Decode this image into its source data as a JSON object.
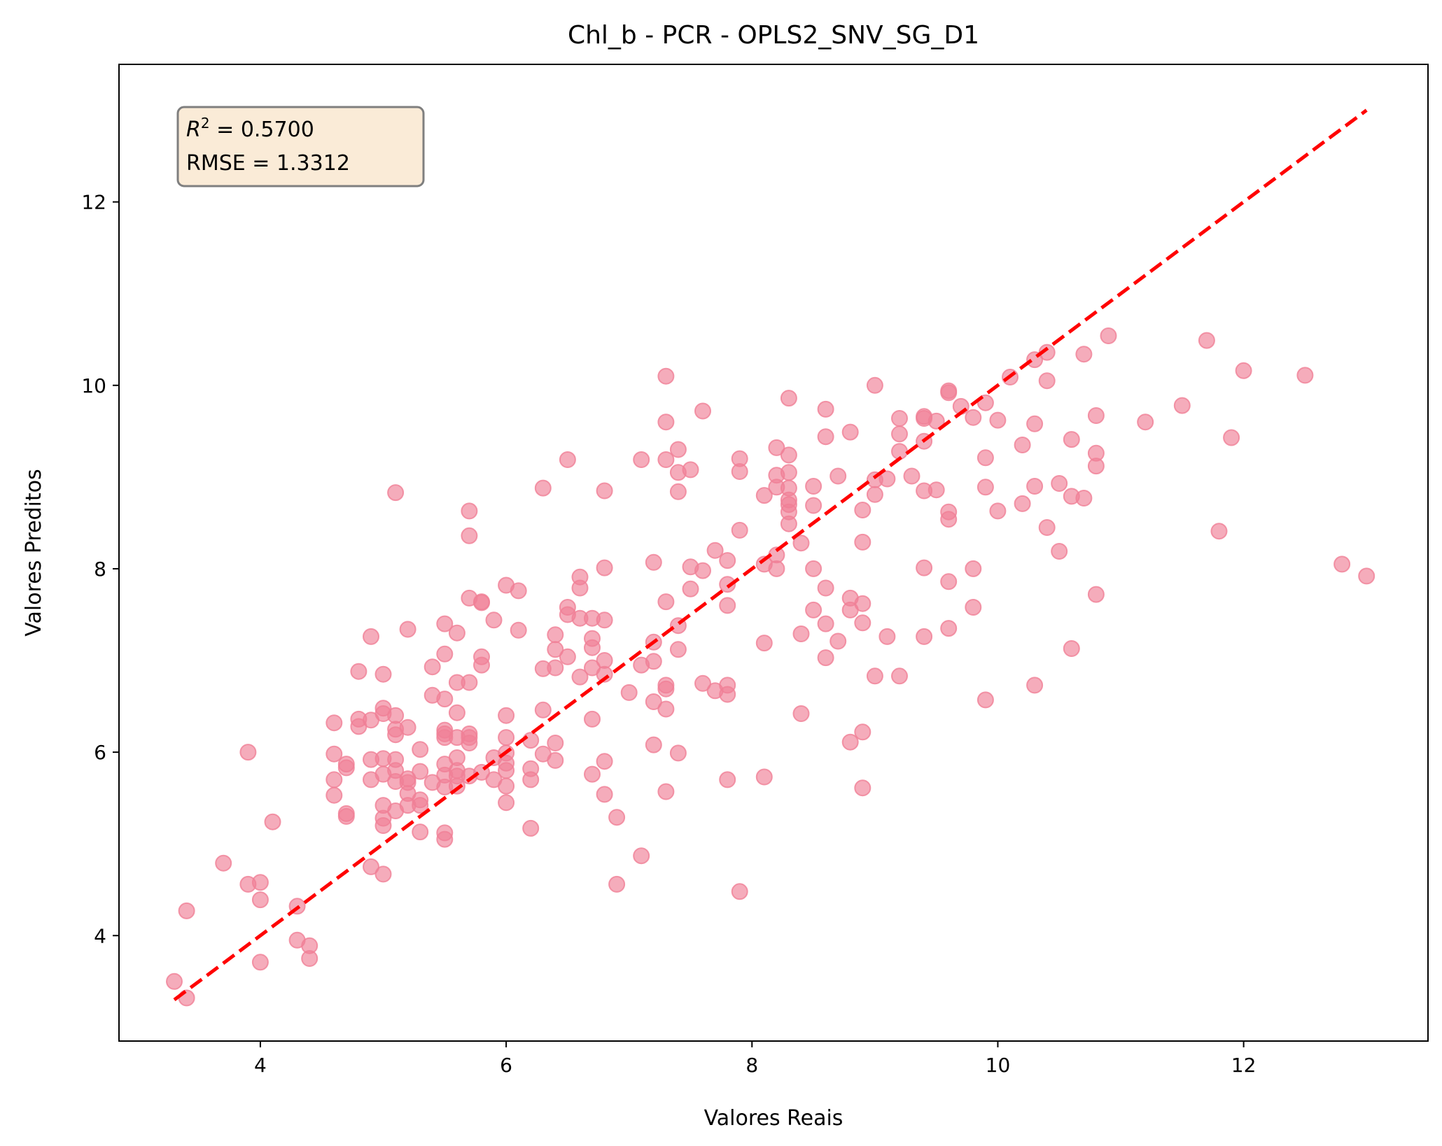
{
  "chart_data": {
    "type": "scatter",
    "title": "Chl_b - PCR - OPLS2_SNV_SG_D1",
    "xlabel": "Valores Reais",
    "ylabel": "Valores Preditos",
    "xlim": [
      2.85,
      13.5
    ],
    "ylim": [
      2.85,
      13.5
    ],
    "xticks": [
      4,
      6,
      8,
      10,
      12
    ],
    "yticks": [
      4,
      6,
      8,
      10,
      12
    ],
    "stats_box": {
      "r2_text": "0.5700",
      "rmse_text": "RMSE = 1.3312"
    },
    "grid": false,
    "legend": "none",
    "colors": {
      "points": "#f08096",
      "reference_line": "#ff0000",
      "stats_box_fill": "#faebd7",
      "stats_box_edge": "#7f7f7f"
    },
    "reference_line": {
      "style": "dashed",
      "x": [
        3.3,
        13.0
      ],
      "y": [
        3.3,
        13.0
      ]
    },
    "points": [
      [
        3.3,
        3.5
      ],
      [
        3.4,
        3.32
      ],
      [
        3.4,
        4.27
      ],
      [
        3.7,
        4.79
      ],
      [
        3.9,
        4.56
      ],
      [
        3.9,
        6.0
      ],
      [
        4.0,
        4.58
      ],
      [
        4.0,
        4.39
      ],
      [
        4.0,
        3.71
      ],
      [
        4.1,
        5.24
      ],
      [
        4.3,
        4.32
      ],
      [
        4.3,
        3.95
      ],
      [
        4.4,
        3.89
      ],
      [
        4.4,
        3.75
      ],
      [
        4.6,
        6.32
      ],
      [
        4.6,
        5.98
      ],
      [
        4.6,
        5.7
      ],
      [
        4.6,
        5.53
      ],
      [
        4.7,
        5.87
      ],
      [
        4.7,
        5.83
      ],
      [
        4.7,
        5.33
      ],
      [
        4.7,
        5.3
      ],
      [
        4.8,
        6.88
      ],
      [
        4.8,
        6.36
      ],
      [
        4.8,
        6.28
      ],
      [
        4.9,
        7.26
      ],
      [
        4.9,
        6.35
      ],
      [
        4.9,
        5.92
      ],
      [
        4.9,
        5.7
      ],
      [
        4.9,
        4.75
      ],
      [
        5.0,
        6.85
      ],
      [
        5.0,
        6.48
      ],
      [
        5.0,
        6.42
      ],
      [
        5.0,
        5.93
      ],
      [
        5.0,
        5.76
      ],
      [
        5.0,
        5.42
      ],
      [
        5.0,
        5.28
      ],
      [
        5.0,
        5.2
      ],
      [
        5.0,
        4.67
      ],
      [
        5.1,
        8.83
      ],
      [
        5.1,
        6.4
      ],
      [
        5.1,
        6.25
      ],
      [
        5.1,
        6.19
      ],
      [
        5.1,
        5.92
      ],
      [
        5.1,
        5.8
      ],
      [
        5.1,
        5.68
      ],
      [
        5.1,
        5.36
      ],
      [
        5.2,
        7.34
      ],
      [
        5.2,
        6.27
      ],
      [
        5.2,
        5.71
      ],
      [
        5.2,
        5.67
      ],
      [
        5.2,
        5.55
      ],
      [
        5.2,
        5.42
      ],
      [
        5.3,
        6.03
      ],
      [
        5.3,
        5.79
      ],
      [
        5.3,
        5.48
      ],
      [
        5.3,
        5.42
      ],
      [
        5.3,
        5.13
      ],
      [
        5.4,
        6.93
      ],
      [
        5.4,
        6.62
      ],
      [
        5.4,
        5.67
      ],
      [
        5.5,
        7.4
      ],
      [
        5.5,
        7.07
      ],
      [
        5.5,
        6.58
      ],
      [
        5.5,
        6.24
      ],
      [
        5.5,
        6.2
      ],
      [
        5.5,
        6.16
      ],
      [
        5.5,
        5.87
      ],
      [
        5.5,
        5.75
      ],
      [
        5.5,
        5.62
      ],
      [
        5.5,
        5.12
      ],
      [
        5.5,
        5.05
      ],
      [
        5.6,
        7.3
      ],
      [
        5.6,
        6.76
      ],
      [
        5.6,
        6.43
      ],
      [
        5.6,
        6.16
      ],
      [
        5.6,
        5.94
      ],
      [
        5.6,
        5.8
      ],
      [
        5.6,
        5.74
      ],
      [
        5.6,
        5.63
      ],
      [
        5.7,
        8.63
      ],
      [
        5.7,
        8.36
      ],
      [
        5.7,
        7.68
      ],
      [
        5.7,
        6.76
      ],
      [
        5.7,
        6.2
      ],
      [
        5.7,
        6.16
      ],
      [
        5.7,
        6.1
      ],
      [
        5.7,
        5.74
      ],
      [
        5.8,
        7.64
      ],
      [
        5.8,
        7.63
      ],
      [
        5.8,
        7.04
      ],
      [
        5.8,
        6.95
      ],
      [
        5.8,
        5.78
      ],
      [
        5.9,
        7.44
      ],
      [
        5.9,
        5.94
      ],
      [
        5.9,
        5.7
      ],
      [
        6.0,
        7.82
      ],
      [
        6.0,
        6.4
      ],
      [
        6.0,
        6.16
      ],
      [
        6.0,
        5.99
      ],
      [
        6.0,
        5.88
      ],
      [
        6.0,
        5.8
      ],
      [
        6.0,
        5.63
      ],
      [
        6.0,
        5.45
      ],
      [
        6.1,
        7.76
      ],
      [
        6.1,
        7.33
      ],
      [
        6.2,
        6.13
      ],
      [
        6.2,
        5.82
      ],
      [
        6.2,
        5.7
      ],
      [
        6.2,
        5.17
      ],
      [
        6.3,
        8.88
      ],
      [
        6.3,
        6.91
      ],
      [
        6.3,
        6.46
      ],
      [
        6.3,
        5.98
      ],
      [
        6.4,
        7.28
      ],
      [
        6.4,
        7.12
      ],
      [
        6.4,
        6.92
      ],
      [
        6.4,
        6.1
      ],
      [
        6.4,
        5.91
      ],
      [
        6.5,
        9.19
      ],
      [
        6.5,
        7.58
      ],
      [
        6.5,
        7.5
      ],
      [
        6.5,
        7.04
      ],
      [
        6.6,
        7.91
      ],
      [
        6.6,
        7.79
      ],
      [
        6.6,
        7.46
      ],
      [
        6.6,
        6.82
      ],
      [
        6.7,
        7.46
      ],
      [
        6.7,
        7.24
      ],
      [
        6.7,
        7.14
      ],
      [
        6.7,
        6.92
      ],
      [
        6.7,
        6.36
      ],
      [
        6.7,
        5.76
      ],
      [
        6.8,
        8.85
      ],
      [
        6.8,
        8.01
      ],
      [
        6.8,
        7.44
      ],
      [
        6.8,
        7.0
      ],
      [
        6.8,
        6.85
      ],
      [
        6.8,
        5.9
      ],
      [
        6.8,
        5.54
      ],
      [
        6.9,
        5.29
      ],
      [
        6.9,
        4.56
      ],
      [
        7.0,
        6.65
      ],
      [
        7.1,
        9.19
      ],
      [
        7.1,
        6.95
      ],
      [
        7.1,
        4.87
      ],
      [
        7.2,
        8.07
      ],
      [
        7.2,
        7.2
      ],
      [
        7.2,
        6.99
      ],
      [
        7.2,
        6.55
      ],
      [
        7.2,
        6.08
      ],
      [
        7.3,
        10.1
      ],
      [
        7.3,
        9.6
      ],
      [
        7.3,
        9.19
      ],
      [
        7.3,
        7.64
      ],
      [
        7.3,
        6.73
      ],
      [
        7.3,
        6.69
      ],
      [
        7.3,
        6.47
      ],
      [
        7.3,
        5.57
      ],
      [
        7.4,
        9.3
      ],
      [
        7.4,
        9.05
      ],
      [
        7.4,
        8.84
      ],
      [
        7.4,
        7.38
      ],
      [
        7.4,
        7.12
      ],
      [
        7.4,
        5.99
      ],
      [
        7.5,
        9.08
      ],
      [
        7.5,
        8.02
      ],
      [
        7.5,
        7.78
      ],
      [
        7.6,
        9.72
      ],
      [
        7.6,
        7.98
      ],
      [
        7.6,
        6.75
      ],
      [
        7.7,
        8.2
      ],
      [
        7.7,
        6.67
      ],
      [
        7.8,
        8.09
      ],
      [
        7.8,
        7.83
      ],
      [
        7.8,
        7.6
      ],
      [
        7.8,
        6.73
      ],
      [
        7.8,
        6.63
      ],
      [
        7.8,
        5.7
      ],
      [
        7.9,
        9.2
      ],
      [
        7.9,
        9.06
      ],
      [
        7.9,
        8.42
      ],
      [
        7.9,
        4.48
      ],
      [
        8.1,
        8.8
      ],
      [
        8.1,
        8.05
      ],
      [
        8.1,
        7.19
      ],
      [
        8.1,
        5.73
      ],
      [
        8.2,
        9.32
      ],
      [
        8.2,
        9.02
      ],
      [
        8.2,
        8.89
      ],
      [
        8.2,
        8.15
      ],
      [
        8.2,
        8.0
      ],
      [
        8.3,
        9.86
      ],
      [
        8.3,
        9.24
      ],
      [
        8.3,
        9.05
      ],
      [
        8.3,
        8.88
      ],
      [
        8.3,
        8.75
      ],
      [
        8.3,
        8.7
      ],
      [
        8.3,
        8.62
      ],
      [
        8.3,
        8.49
      ],
      [
        8.4,
        8.28
      ],
      [
        8.4,
        7.29
      ],
      [
        8.4,
        6.42
      ],
      [
        8.5,
        8.9
      ],
      [
        8.5,
        8.69
      ],
      [
        8.5,
        8.0
      ],
      [
        8.5,
        7.55
      ],
      [
        8.6,
        9.74
      ],
      [
        8.6,
        9.44
      ],
      [
        8.6,
        7.79
      ],
      [
        8.6,
        7.4
      ],
      [
        8.6,
        7.03
      ],
      [
        8.7,
        9.01
      ],
      [
        8.7,
        7.21
      ],
      [
        8.8,
        9.49
      ],
      [
        8.8,
        7.68
      ],
      [
        8.8,
        7.55
      ],
      [
        8.8,
        6.11
      ],
      [
        8.9,
        8.64
      ],
      [
        8.9,
        8.29
      ],
      [
        8.9,
        7.62
      ],
      [
        8.9,
        7.41
      ],
      [
        8.9,
        6.22
      ],
      [
        8.9,
        5.61
      ],
      [
        9.0,
        10.0
      ],
      [
        9.0,
        8.97
      ],
      [
        9.0,
        8.81
      ],
      [
        9.0,
        6.83
      ],
      [
        9.1,
        8.98
      ],
      [
        9.1,
        7.26
      ],
      [
        9.2,
        9.64
      ],
      [
        9.2,
        9.47
      ],
      [
        9.2,
        9.28
      ],
      [
        9.2,
        6.83
      ],
      [
        9.3,
        9.01
      ],
      [
        9.4,
        9.66
      ],
      [
        9.4,
        9.64
      ],
      [
        9.4,
        9.39
      ],
      [
        9.4,
        8.85
      ],
      [
        9.4,
        8.01
      ],
      [
        9.4,
        7.26
      ],
      [
        9.5,
        9.61
      ],
      [
        9.5,
        8.86
      ],
      [
        9.6,
        9.94
      ],
      [
        9.6,
        9.92
      ],
      [
        9.6,
        8.62
      ],
      [
        9.6,
        8.54
      ],
      [
        9.6,
        7.86
      ],
      [
        9.6,
        7.35
      ],
      [
        9.7,
        9.77
      ],
      [
        9.8,
        9.65
      ],
      [
        9.8,
        8.0
      ],
      [
        9.8,
        7.58
      ],
      [
        9.9,
        9.81
      ],
      [
        9.9,
        9.21
      ],
      [
        9.9,
        8.89
      ],
      [
        9.9,
        6.57
      ],
      [
        10.0,
        9.62
      ],
      [
        10.0,
        8.63
      ],
      [
        10.1,
        10.09
      ],
      [
        10.2,
        9.35
      ],
      [
        10.2,
        8.71
      ],
      [
        10.3,
        10.28
      ],
      [
        10.3,
        9.58
      ],
      [
        10.3,
        8.9
      ],
      [
        10.3,
        6.73
      ],
      [
        10.4,
        10.36
      ],
      [
        10.4,
        10.05
      ],
      [
        10.4,
        8.45
      ],
      [
        10.5,
        8.93
      ],
      [
        10.5,
        8.19
      ],
      [
        10.6,
        9.41
      ],
      [
        10.6,
        8.79
      ],
      [
        10.6,
        7.13
      ],
      [
        10.7,
        10.34
      ],
      [
        10.7,
        8.77
      ],
      [
        10.8,
        9.67
      ],
      [
        10.8,
        9.26
      ],
      [
        10.8,
        9.12
      ],
      [
        10.8,
        7.72
      ],
      [
        10.9,
        10.54
      ],
      [
        11.2,
        9.6
      ],
      [
        11.5,
        9.78
      ],
      [
        11.7,
        10.49
      ],
      [
        11.8,
        8.41
      ],
      [
        11.9,
        9.43
      ],
      [
        12.0,
        10.16
      ],
      [
        12.5,
        10.11
      ],
      [
        12.8,
        8.05
      ],
      [
        13.0,
        7.92
      ]
    ]
  }
}
